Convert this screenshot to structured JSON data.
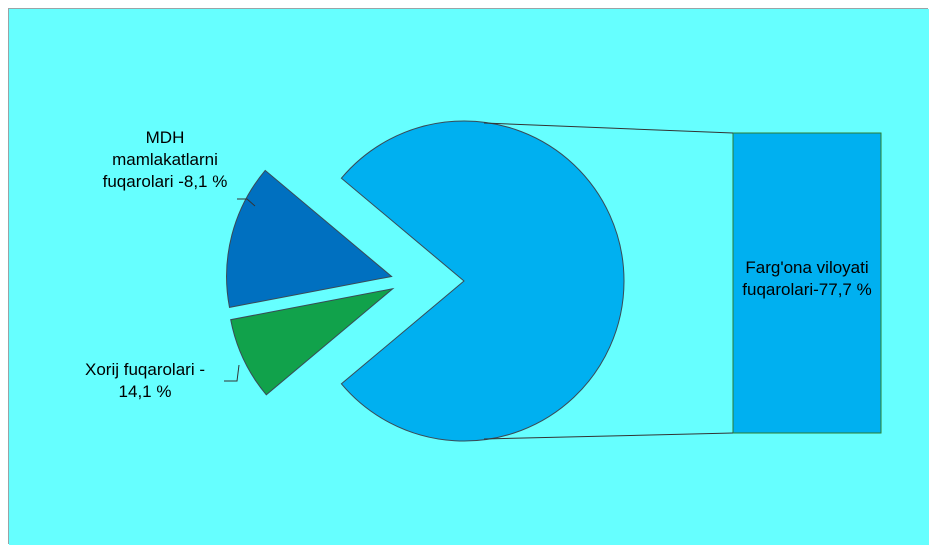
{
  "chart_data": {
    "type": "pie",
    "subtype": "pie-of-pie",
    "title": "",
    "background_color": "#66ffff",
    "slices": [
      {
        "label_lines": [
          "MDH",
          "mamlakatlarni",
          "fuqarolari -8,1 %"
        ],
        "value": 8.1,
        "color": "#11a24b",
        "position": "secondary-pie"
      },
      {
        "label_lines": [
          "Xorij fuqarolari -",
          "14,1 %"
        ],
        "value": 14.1,
        "color": "#0070c0",
        "position": "secondary-pie"
      },
      {
        "label_lines": [
          "Farg'ona viloyati",
          "fuqarolari-77,7 %"
        ],
        "value": 77.7,
        "color": "#00b0f0",
        "position": "secondary-bar"
      }
    ]
  }
}
